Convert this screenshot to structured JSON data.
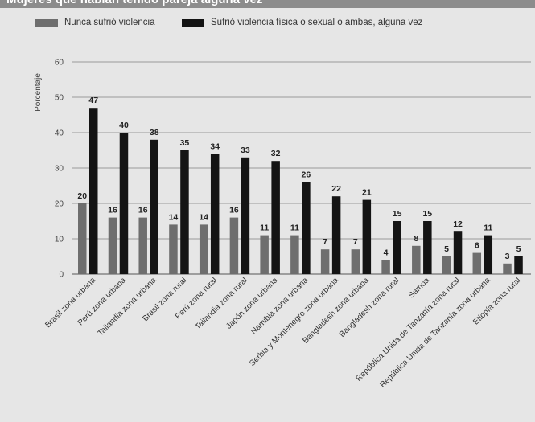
{
  "header": {
    "title": "Mujeres que habían tenido pareja alguna vez"
  },
  "colors": {
    "series0": "#6e6e6e",
    "series1": "#141414",
    "grid": "#9a9a9a",
    "axis": "#555555"
  },
  "chart_data": {
    "type": "bar",
    "ylabel": "Porcentaje",
    "ylim": [
      0,
      60
    ],
    "yticks": [
      0,
      10,
      20,
      30,
      40,
      50,
      60
    ],
    "grid": true,
    "legend": "top-left",
    "categories": [
      "Brasil zona urbana",
      "Perú zona urbana",
      "Tailandia zona urbana",
      "Brasil zona rural",
      "Perú zona rural",
      "Tailandia zona rural",
      "Japón zona urbana",
      "Namibia zona urbana",
      "Serbia y Montenegro zona urbana",
      "Bangladesh zona urbana",
      "Bangladesh zona rural",
      "Samoa",
      "República Unida de Tanzanía zona rural",
      "República Unida de Tanzanía zona urbana",
      "Etiopía zona rural"
    ],
    "series": [
      {
        "name": "Nunca sufrió violencia",
        "values": [
          20,
          16,
          16,
          14,
          14,
          16,
          11,
          11,
          7,
          7,
          4,
          8,
          5,
          6,
          3
        ]
      },
      {
        "name": "Sufrió violencia física o sexual o ambas, alguna vez",
        "values": [
          47,
          40,
          38,
          35,
          34,
          33,
          32,
          26,
          22,
          21,
          15,
          15,
          12,
          11,
          5
        ]
      }
    ]
  }
}
